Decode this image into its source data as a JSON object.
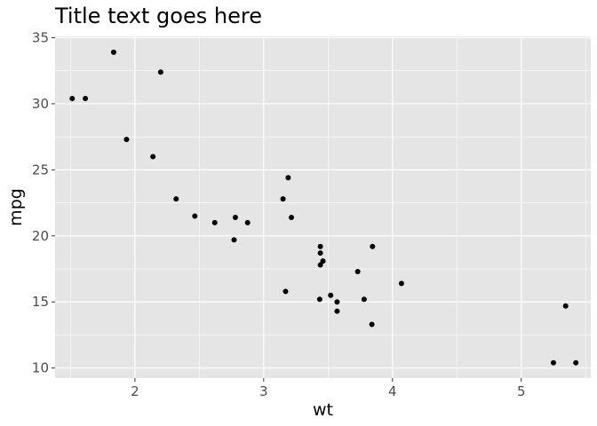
{
  "chart_data": {
    "type": "scatter",
    "title": "Title text goes here",
    "xlabel": "wt",
    "ylabel": "mpg",
    "xlim": [
      1.38,
      5.54
    ],
    "ylim": [
      9.24,
      35.1
    ],
    "xticks": [
      2,
      3,
      4,
      5
    ],
    "yticks": [
      10,
      15,
      20,
      25,
      30,
      35
    ],
    "grid": true,
    "colors": {
      "panel": "#e5e5e5",
      "grid": "#ffffff",
      "point": "#000000",
      "text": "#4d4d4d"
    },
    "points": [
      {
        "x": 1.513,
        "y": 30.4
      },
      {
        "x": 1.615,
        "y": 30.4
      },
      {
        "x": 1.835,
        "y": 33.9
      },
      {
        "x": 1.935,
        "y": 27.3
      },
      {
        "x": 2.14,
        "y": 26.0
      },
      {
        "x": 2.2,
        "y": 32.4
      },
      {
        "x": 2.32,
        "y": 22.8
      },
      {
        "x": 2.465,
        "y": 21.5
      },
      {
        "x": 2.62,
        "y": 21.0
      },
      {
        "x": 2.77,
        "y": 19.7
      },
      {
        "x": 2.78,
        "y": 21.4
      },
      {
        "x": 2.875,
        "y": 21.0
      },
      {
        "x": 3.15,
        "y": 22.8
      },
      {
        "x": 3.17,
        "y": 15.8
      },
      {
        "x": 3.19,
        "y": 24.4
      },
      {
        "x": 3.215,
        "y": 21.4
      },
      {
        "x": 3.435,
        "y": 15.2
      },
      {
        "x": 3.44,
        "y": 18.7
      },
      {
        "x": 3.44,
        "y": 19.2
      },
      {
        "x": 3.44,
        "y": 17.8
      },
      {
        "x": 3.46,
        "y": 18.1
      },
      {
        "x": 3.52,
        "y": 15.5
      },
      {
        "x": 3.57,
        "y": 14.3
      },
      {
        "x": 3.57,
        "y": 15.0
      },
      {
        "x": 3.73,
        "y": 17.3
      },
      {
        "x": 3.78,
        "y": 15.2
      },
      {
        "x": 3.84,
        "y": 13.3
      },
      {
        "x": 3.845,
        "y": 19.2
      },
      {
        "x": 4.07,
        "y": 16.4
      },
      {
        "x": 5.25,
        "y": 10.4
      },
      {
        "x": 5.345,
        "y": 14.7
      },
      {
        "x": 5.424,
        "y": 10.4
      }
    ]
  }
}
